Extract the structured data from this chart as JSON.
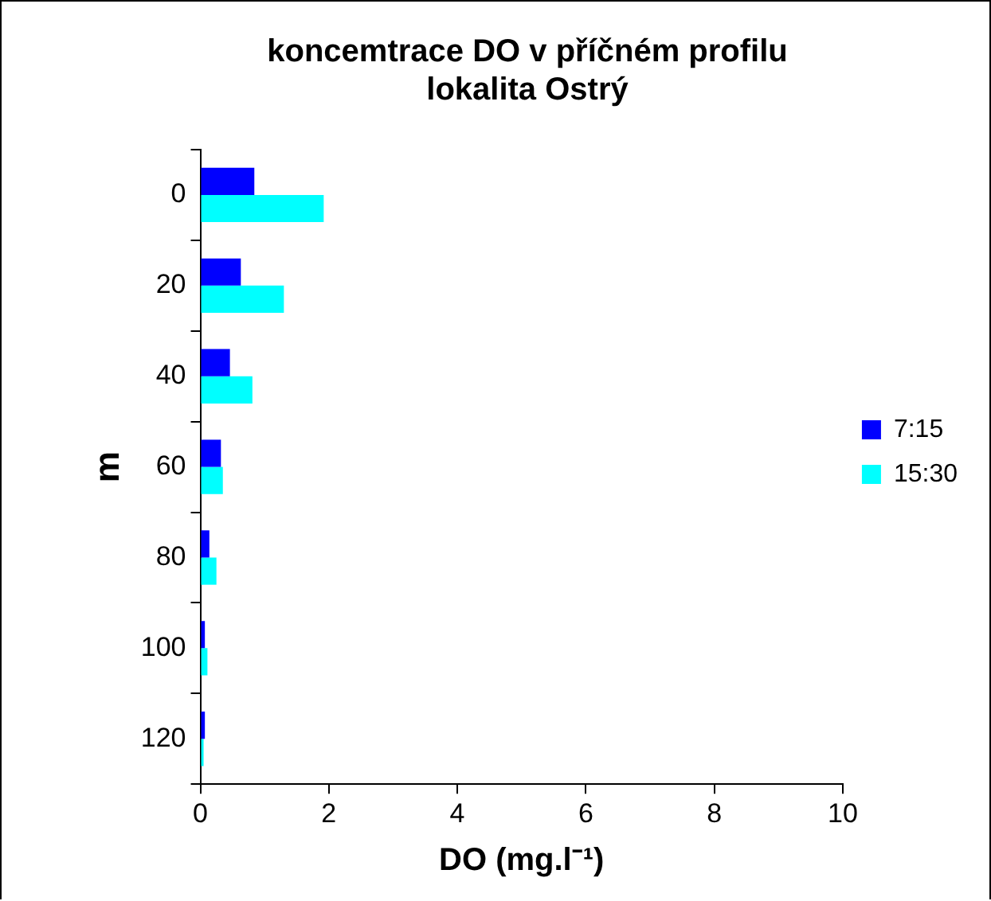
{
  "chart_data": {
    "type": "bar",
    "orientation": "horizontal",
    "title": "koncemtrace DO v příčném profilu\nlokalita Ostrý",
    "xlabel": "DO (mg.l⁻¹)",
    "ylabel": "m",
    "categories": [
      "0",
      "20",
      "40",
      "60",
      "80",
      "100",
      "120"
    ],
    "series": [
      {
        "name": "7:15",
        "color": "#0000ff",
        "values": [
          0.84,
          0.63,
          0.46,
          0.32,
          0.14,
          0.07,
          0.07
        ]
      },
      {
        "name": "15:30",
        "color": "#00ffff",
        "values": [
          1.92,
          1.3,
          0.81,
          0.35,
          0.25,
          0.11,
          0.05
        ]
      }
    ],
    "xlim": [
      0,
      10
    ],
    "xticks": [
      0,
      2,
      4,
      6,
      8,
      10
    ],
    "grid": false,
    "legend": "right"
  }
}
